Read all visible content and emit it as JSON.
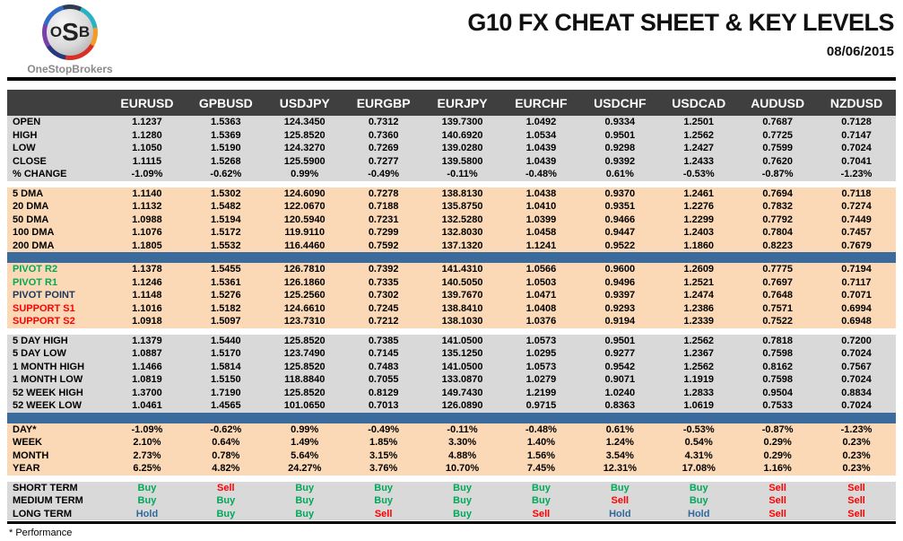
{
  "header": {
    "title": "G10 FX CHEAT SHEET & KEY LEVELS",
    "date": "08/06/2015",
    "logo": {
      "monogram_o": "O",
      "monogram_s": "S",
      "monogram_b": "B",
      "brand": "OneStopBrokers"
    }
  },
  "colors": {
    "header_bg": "#3f3f3f",
    "gray_row": "#d9d9d9",
    "peach_row": "#fcd9b6",
    "divider_blue": "#3a6b9c",
    "buy_green": "#00a859",
    "sell_red": "#fe0000",
    "hold_blue": "#31689b",
    "pivot_green": "#00a859",
    "pivot_navy": "#17375d",
    "support_red": "#fe0000"
  },
  "table": {
    "columns": [
      "EURUSD",
      "GPBUSD",
      "USDJPY",
      "EURGBP",
      "EURJPY",
      "EURCHF",
      "USDCHF",
      "USDCAD",
      "AUDUSD",
      "NZDUSD"
    ],
    "sections": [
      {
        "id": "ohlc",
        "theme": "gray",
        "rows": [
          {
            "label": "OPEN",
            "values": [
              "1.1237",
              "1.5363",
              "124.3450",
              "0.7312",
              "139.7300",
              "1.0492",
              "0.9334",
              "1.2501",
              "0.7687",
              "0.7128"
            ]
          },
          {
            "label": "HIGH",
            "values": [
              "1.1280",
              "1.5369",
              "125.8520",
              "0.7360",
              "140.6920",
              "1.0534",
              "0.9501",
              "1.2562",
              "0.7725",
              "0.7147"
            ]
          },
          {
            "label": "LOW",
            "values": [
              "1.1050",
              "1.5190",
              "124.3270",
              "0.7269",
              "139.0280",
              "1.0439",
              "0.9298",
              "1.2427",
              "0.7599",
              "0.7024"
            ]
          },
          {
            "label": "CLOSE",
            "values": [
              "1.1115",
              "1.5268",
              "125.5900",
              "0.7277",
              "139.5800",
              "1.0439",
              "0.9392",
              "1.2433",
              "0.7620",
              "0.7041"
            ]
          },
          {
            "label": "% CHANGE",
            "values": [
              "-1.09%",
              "-0.62%",
              "0.99%",
              "-0.49%",
              "-0.11%",
              "-0.48%",
              "0.61%",
              "-0.53%",
              "-0.87%",
              "-1.23%"
            ]
          }
        ]
      },
      {
        "id": "dma",
        "theme": "peach",
        "rows": [
          {
            "label": "5 DMA",
            "values": [
              "1.1140",
              "1.5302",
              "124.6090",
              "0.7278",
              "138.8130",
              "1.0438",
              "0.9370",
              "1.2461",
              "0.7694",
              "0.7118"
            ]
          },
          {
            "label": "20 DMA",
            "values": [
              "1.1132",
              "1.5482",
              "122.0670",
              "0.7188",
              "135.8750",
              "1.0410",
              "0.9351",
              "1.2276",
              "0.7832",
              "0.7274"
            ]
          },
          {
            "label": "50 DMA",
            "values": [
              "1.0988",
              "1.5194",
              "120.5940",
              "0.7231",
              "132.5280",
              "1.0399",
              "0.9466",
              "1.2299",
              "0.7792",
              "0.7449"
            ]
          },
          {
            "label": "100 DMA",
            "values": [
              "1.1076",
              "1.5172",
              "119.9110",
              "0.7299",
              "132.8030",
              "1.0458",
              "0.9447",
              "1.2403",
              "0.7804",
              "0.7457"
            ]
          },
          {
            "label": "200 DMA",
            "values": [
              "1.1805",
              "1.5532",
              "116.4460",
              "0.7592",
              "137.1320",
              "1.1241",
              "0.9522",
              "1.1860",
              "0.8223",
              "0.7679"
            ]
          }
        ]
      },
      {
        "id": "pivots",
        "theme": "peach",
        "rows": [
          {
            "label": "PIVOT R2",
            "style": "green",
            "values": [
              "1.1378",
              "1.5455",
              "126.7810",
              "0.7392",
              "141.4310",
              "1.0566",
              "0.9600",
              "1.2609",
              "0.7775",
              "0.7194"
            ]
          },
          {
            "label": "PIVOT R1",
            "style": "green",
            "values": [
              "1.1246",
              "1.5361",
              "126.1860",
              "0.7335",
              "140.5050",
              "1.0503",
              "0.9496",
              "1.2521",
              "0.7697",
              "0.7117"
            ]
          },
          {
            "label": "PIVOT POINT",
            "style": "navy",
            "values": [
              "1.1148",
              "1.5276",
              "125.2560",
              "0.7302",
              "139.7670",
              "1.0471",
              "0.9397",
              "1.2474",
              "0.7648",
              "0.7071"
            ]
          },
          {
            "label": "SUPPORT S1",
            "style": "red",
            "values": [
              "1.1016",
              "1.5182",
              "124.6610",
              "0.7245",
              "138.8410",
              "1.0408",
              "0.9293",
              "1.2386",
              "0.7571",
              "0.6994"
            ]
          },
          {
            "label": "SUPPORT S2",
            "style": "red",
            "values": [
              "1.0918",
              "1.5097",
              "123.7310",
              "0.7212",
              "138.1030",
              "1.0376",
              "0.9194",
              "1.2339",
              "0.7522",
              "0.6948"
            ]
          }
        ]
      },
      {
        "id": "ranges",
        "theme": "gray",
        "rows": [
          {
            "label": "5 DAY HIGH",
            "values": [
              "1.1379",
              "1.5440",
              "125.8520",
              "0.7385",
              "141.0500",
              "1.0573",
              "0.9501",
              "1.2562",
              "0.7818",
              "0.7200"
            ]
          },
          {
            "label": "5 DAY LOW",
            "values": [
              "1.0887",
              "1.5170",
              "123.7490",
              "0.7145",
              "135.1250",
              "1.0295",
              "0.9277",
              "1.2367",
              "0.7598",
              "0.7024"
            ]
          },
          {
            "label": "1 MONTH HIGH",
            "values": [
              "1.1466",
              "1.5814",
              "125.8520",
              "0.7483",
              "141.0500",
              "1.0573",
              "0.9542",
              "1.2562",
              "0.8162",
              "0.7567"
            ]
          },
          {
            "label": "1 MONTH LOW",
            "values": [
              "1.0819",
              "1.5150",
              "118.8840",
              "0.7055",
              "133.0870",
              "1.0279",
              "0.9071",
              "1.1919",
              "0.7598",
              "0.7024"
            ]
          },
          {
            "label": "52 WEEK HIGH",
            "values": [
              "1.3700",
              "1.7190",
              "125.8520",
              "0.8129",
              "149.7430",
              "1.2199",
              "1.0240",
              "1.2833",
              "0.9504",
              "0.8834"
            ]
          },
          {
            "label": "52 WEEK LOW",
            "values": [
              "1.0461",
              "1.4565",
              "101.0650",
              "0.7013",
              "126.0890",
              "0.9715",
              "0.8363",
              "1.0619",
              "0.7533",
              "0.7024"
            ]
          }
        ]
      },
      {
        "id": "performance",
        "theme": "peach",
        "rows": [
          {
            "label": "DAY*",
            "values": [
              "-1.09%",
              "-0.62%",
              "0.99%",
              "-0.49%",
              "-0.11%",
              "-0.48%",
              "0.61%",
              "-0.53%",
              "-0.87%",
              "-1.23%"
            ]
          },
          {
            "label": "WEEK",
            "values": [
              "2.10%",
              "0.64%",
              "1.49%",
              "1.85%",
              "3.30%",
              "1.40%",
              "1.24%",
              "0.54%",
              "0.29%",
              "0.23%"
            ]
          },
          {
            "label": "MONTH",
            "values": [
              "2.73%",
              "0.78%",
              "5.64%",
              "3.15%",
              "4.88%",
              "1.56%",
              "3.54%",
              "4.31%",
              "0.29%",
              "0.23%"
            ]
          },
          {
            "label": "YEAR",
            "values": [
              "6.25%",
              "4.82%",
              "24.27%",
              "3.76%",
              "10.70%",
              "7.45%",
              "12.31%",
              "17.08%",
              "1.16%",
              "0.23%"
            ]
          }
        ]
      },
      {
        "id": "signals",
        "theme": "gray",
        "rows": [
          {
            "label": "SHORT TERM",
            "values": [
              "Buy",
              "Sell",
              "Buy",
              "Buy",
              "Buy",
              "Buy",
              "Buy",
              "Buy",
              "Sell",
              "Sell"
            ]
          },
          {
            "label": "MEDIUM TERM",
            "values": [
              "Buy",
              "Buy",
              "Buy",
              "Buy",
              "Buy",
              "Buy",
              "Sell",
              "Buy",
              "Sell",
              "Sell"
            ]
          },
          {
            "label": "LONG TERM",
            "values": [
              "Hold",
              "Buy",
              "Buy",
              "Sell",
              "Buy",
              "Sell",
              "Hold",
              "Hold",
              "Sell",
              "Sell"
            ]
          }
        ]
      }
    ]
  },
  "footer": {
    "note": "* Performance"
  }
}
